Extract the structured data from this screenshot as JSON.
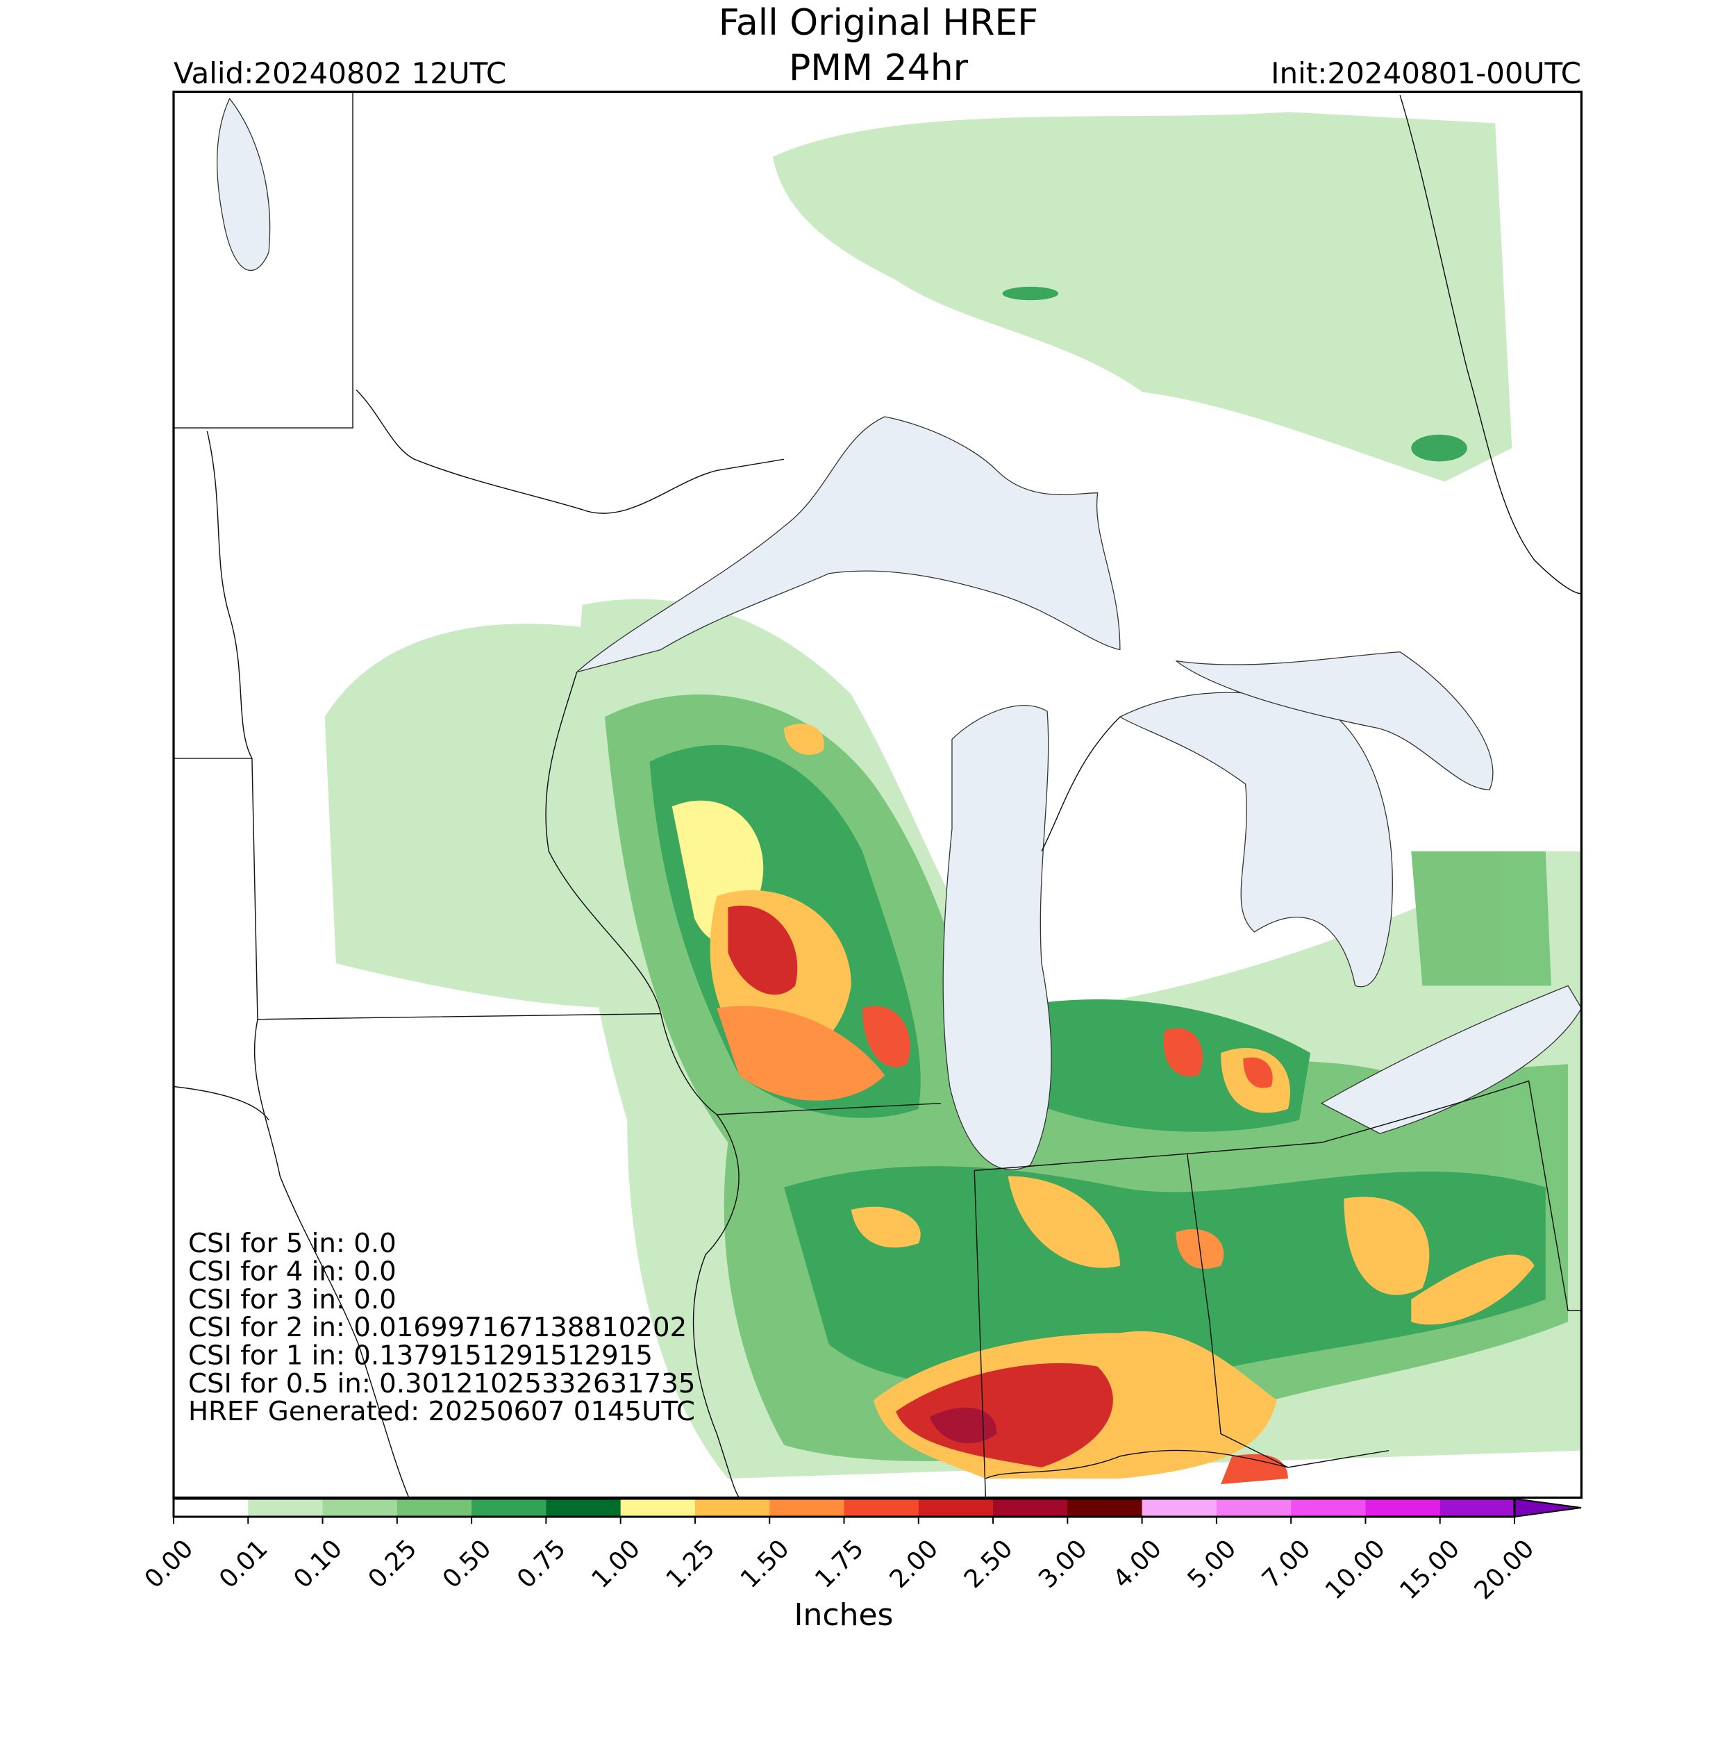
{
  "header": {
    "title_line1": "Fall Original HREF",
    "title_line2": "PMM 24hr",
    "valid": "Valid:20240802 12UTC",
    "init": "Init:20240801-00UTC"
  },
  "stats": [
    "CSI for 5 in: 0.0",
    "CSI for 4 in: 0.0",
    "CSI for 3 in: 0.0",
    "CSI for 2 in: 0.016997167138810202",
    "CSI for 1 in: 0.1379151291512915",
    "CSI for 0.5 in: 0.30121025332631735",
    "HREF Generated: 20250607 0145UTC"
  ],
  "colorbar": {
    "label": "Inches",
    "ticks": [
      {
        "value": 0,
        "label": "0.00"
      },
      {
        "value": 0.01,
        "label": "0.01"
      },
      {
        "value": 0.1,
        "label": "0.10"
      },
      {
        "value": 0.25,
        "label": "0.25"
      },
      {
        "value": 0.5,
        "label": "0.50"
      },
      {
        "value": 0.75,
        "label": "0.75"
      },
      {
        "value": 1,
        "label": "1.00"
      },
      {
        "value": 1.25,
        "label": "1.25"
      },
      {
        "value": 1.5,
        "label": "1.50"
      },
      {
        "value": 1.75,
        "label": "1.75"
      },
      {
        "value": 2,
        "label": "2.00"
      },
      {
        "value": 2.5,
        "label": "2.50"
      },
      {
        "value": 3,
        "label": "3.00"
      },
      {
        "value": 4,
        "label": "4.00"
      },
      {
        "value": 5,
        "label": "5.00"
      },
      {
        "value": 7,
        "label": "7.00"
      },
      {
        "value": 10,
        "label": "10.00"
      },
      {
        "value": 15,
        "label": "15.00"
      },
      {
        "value": 20,
        "label": "20.00"
      }
    ],
    "colors": [
      "#ffffff",
      "#c7e9c0",
      "#a1d99b",
      "#74c476",
      "#31a354",
      "#006d2c",
      "#fff68f",
      "#ffc04c",
      "#ff8c3a",
      "#f24a2a",
      "#d11f1f",
      "#a3082a",
      "#6b0000",
      "#f8a8f8",
      "#f47cf4",
      "#f04ef0",
      "#e01ee8",
      "#a010d0"
    ],
    "extend_color": "#7a00b8"
  }
}
